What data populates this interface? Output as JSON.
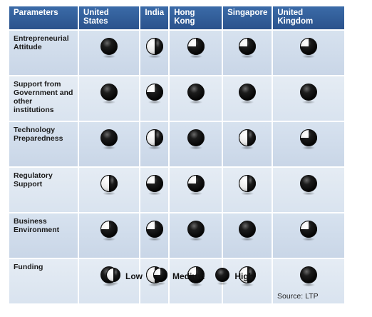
{
  "table": {
    "headers": [
      "Parameters",
      "United States",
      "India",
      "Hong Kong",
      "Singapore",
      "United Kingdom"
    ],
    "rows": [
      {
        "parameter": "Entrepreneurial Attitude",
        "ratings": [
          "high",
          "low",
          "medium",
          "medium",
          "medium"
        ]
      },
      {
        "parameter": "Support from Government and other institutions",
        "ratings": [
          "high",
          "medium",
          "high",
          "high",
          "high"
        ]
      },
      {
        "parameter": "Technology Preparedness",
        "ratings": [
          "high",
          "low",
          "high",
          "low",
          "medium"
        ]
      },
      {
        "parameter": "Regulatory Support",
        "ratings": [
          "low",
          "medium",
          "medium",
          "low",
          "high"
        ]
      },
      {
        "parameter": "Business Environment",
        "ratings": [
          "medium",
          "medium",
          "high",
          "high",
          "medium"
        ]
      },
      {
        "parameter": "Funding",
        "ratings": [
          "high",
          "low",
          "medium",
          "low",
          "high"
        ]
      }
    ]
  },
  "legend": {
    "low": "Low",
    "medium": "Medium",
    "high": "High"
  },
  "source": "Source: LTP",
  "colors": {
    "header_bg": "#2f5d99",
    "cell_bg": "#d3deec",
    "ball": "#111111"
  }
}
